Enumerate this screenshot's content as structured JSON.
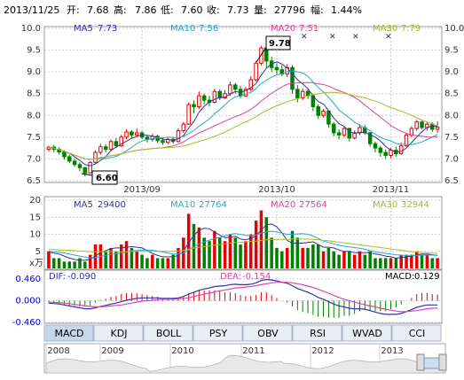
{
  "header": {
    "date": "2013/11/25",
    "open_label": "开:",
    "open": "7.68",
    "high_label": "高:",
    "high": "7.86",
    "low_label": "低:",
    "low": "7.60",
    "close_label": "收:",
    "close": "7.73",
    "volume_label": "量:",
    "volume": "27796",
    "change_label": "幅:",
    "change": "1.44%"
  },
  "colors": {
    "up": "#e60000",
    "down": "#008000",
    "ma5": "#333399",
    "ma10": "#22aacc",
    "ma20": "#dd4499",
    "ma30": "#aabb22",
    "dif": "#3333aa",
    "dea": "#dd44aa",
    "grid": "#cfcfcf",
    "tab_bg": "#e8eef6",
    "tab_active": "#c8d6ea"
  },
  "chart_data": {
    "type": "candlestick",
    "price_axis": {
      "ticks": [
        "10.0",
        "9.5",
        "9.0",
        "8.5",
        "8.0",
        "7.5",
        "7.0",
        "6.5"
      ],
      "ylim": [
        6.5,
        10.0
      ]
    },
    "volume_axis": {
      "ticks": [
        "20",
        "15",
        "10",
        "5"
      ],
      "unit": "x万",
      "ylim": [
        0,
        20
      ]
    },
    "macd_axis": {
      "ticks": [
        "0.460",
        "0.000",
        "-0.460"
      ],
      "ylim": [
        -0.46,
        0.46
      ]
    },
    "x_labels": [
      "2013/09",
      "2013/10",
      "2013/11"
    ],
    "ma_legend": [
      {
        "name": "MA5",
        "value": "7.73"
      },
      {
        "name": "MA10",
        "value": "7.56"
      },
      {
        "name": "MA20",
        "value": "7.51"
      },
      {
        "name": "MA30",
        "value": "7.79"
      }
    ],
    "vol_legend": [
      {
        "name": "MA5",
        "value": "29400"
      },
      {
        "name": "MA10",
        "value": "27764"
      },
      {
        "name": "MA20",
        "value": "27564"
      },
      {
        "name": "MA30",
        "value": "32944"
      }
    ],
    "macd_legend": {
      "dif_label": "DIF:",
      "dif": "-0.090",
      "dea_label": "DEA:",
      "dea": "-0.154",
      "macd_label": "MACD:",
      "macd": "0.129"
    },
    "high_callout": "9.78",
    "low_callout": "6.60",
    "candles": [
      [
        7.22,
        7.27,
        7.17,
        7.3
      ],
      [
        7.27,
        7.22,
        7.15,
        7.32
      ],
      [
        7.22,
        7.16,
        7.1,
        7.26
      ],
      [
        7.16,
        7.05,
        6.98,
        7.2
      ],
      [
        7.05,
        6.95,
        6.9,
        7.1
      ],
      [
        6.95,
        6.87,
        6.82,
        7.0
      ],
      [
        6.87,
        6.8,
        6.72,
        6.92
      ],
      [
        6.8,
        6.68,
        6.6,
        6.82
      ],
      [
        6.68,
        6.92,
        6.66,
        6.95
      ],
      [
        6.92,
        7.15,
        6.9,
        7.2
      ],
      [
        7.15,
        7.28,
        7.1,
        7.35
      ],
      [
        7.28,
        7.22,
        7.15,
        7.34
      ],
      [
        7.22,
        7.4,
        7.18,
        7.45
      ],
      [
        7.4,
        7.3,
        7.25,
        7.48
      ],
      [
        7.3,
        7.5,
        7.28,
        7.55
      ],
      [
        7.5,
        7.62,
        7.45,
        7.68
      ],
      [
        7.62,
        7.55,
        7.48,
        7.66
      ],
      [
        7.55,
        7.6,
        7.52,
        7.7
      ],
      [
        7.6,
        7.5,
        7.45,
        7.64
      ],
      [
        7.5,
        7.45,
        7.38,
        7.55
      ],
      [
        7.45,
        7.52,
        7.4,
        7.58
      ],
      [
        7.52,
        7.42,
        7.36,
        7.56
      ],
      [
        7.42,
        7.38,
        7.32,
        7.48
      ],
      [
        7.38,
        7.45,
        7.34,
        7.5
      ],
      [
        7.45,
        7.4,
        7.35,
        7.5
      ],
      [
        7.4,
        7.65,
        7.38,
        7.7
      ],
      [
        7.65,
        7.8,
        7.6,
        7.85
      ],
      [
        7.8,
        8.25,
        7.78,
        8.3
      ],
      [
        8.25,
        8.2,
        8.05,
        8.35
      ],
      [
        8.2,
        8.45,
        8.15,
        8.55
      ],
      [
        8.45,
        8.35,
        8.25,
        8.5
      ],
      [
        8.35,
        8.3,
        8.2,
        8.45
      ],
      [
        8.3,
        8.55,
        8.28,
        8.62
      ],
      [
        8.55,
        8.4,
        8.35,
        8.6
      ],
      [
        8.4,
        8.5,
        8.38,
        8.58
      ],
      [
        8.5,
        8.7,
        8.45,
        8.78
      ],
      [
        8.7,
        8.6,
        8.5,
        8.75
      ],
      [
        8.6,
        8.45,
        8.4,
        8.68
      ],
      [
        8.45,
        8.6,
        8.42,
        8.65
      ],
      [
        8.6,
        8.82,
        8.55,
        8.9
      ],
      [
        8.82,
        9.2,
        8.78,
        9.25
      ],
      [
        9.2,
        9.55,
        9.15,
        9.6
      ],
      [
        9.55,
        9.25,
        9.1,
        9.78
      ],
      [
        9.25,
        9.1,
        9.0,
        9.35
      ],
      [
        9.1,
        9.05,
        8.95,
        9.2
      ],
      [
        9.05,
        8.95,
        8.9,
        9.15
      ],
      [
        8.95,
        9.1,
        8.88,
        9.18
      ],
      [
        9.1,
        8.6,
        8.5,
        9.15
      ],
      [
        8.6,
        8.4,
        8.3,
        8.7
      ],
      [
        8.4,
        8.55,
        8.35,
        8.62
      ],
      [
        8.55,
        8.45,
        8.38,
        8.6
      ],
      [
        8.45,
        8.2,
        8.1,
        8.5
      ],
      [
        8.2,
        8.0,
        7.92,
        8.25
      ],
      [
        8.0,
        8.1,
        7.95,
        8.15
      ],
      [
        8.1,
        7.8,
        7.72,
        8.12
      ],
      [
        7.8,
        7.6,
        7.52,
        7.85
      ],
      [
        7.6,
        7.55,
        7.45,
        7.68
      ],
      [
        7.55,
        7.7,
        7.5,
        7.75
      ],
      [
        7.7,
        7.48,
        7.4,
        7.72
      ],
      [
        7.48,
        7.6,
        7.45,
        7.65
      ],
      [
        7.6,
        7.72,
        7.55,
        7.8
      ],
      [
        7.72,
        7.6,
        7.55,
        7.78
      ],
      [
        7.6,
        7.35,
        7.28,
        7.62
      ],
      [
        7.35,
        7.25,
        7.15,
        7.4
      ],
      [
        7.25,
        7.15,
        7.05,
        7.3
      ],
      [
        7.15,
        7.08,
        7.0,
        7.22
      ],
      [
        7.08,
        7.2,
        7.02,
        7.25
      ],
      [
        7.2,
        7.12,
        7.05,
        7.28
      ],
      [
        7.12,
        7.3,
        7.1,
        7.38
      ],
      [
        7.3,
        7.55,
        7.28,
        7.6
      ],
      [
        7.55,
        7.7,
        7.5,
        7.75
      ],
      [
        7.7,
        7.85,
        7.65,
        7.9
      ],
      [
        7.85,
        7.72,
        7.68,
        7.88
      ],
      [
        7.72,
        7.8,
        7.65,
        7.85
      ],
      [
        7.8,
        7.68,
        7.62,
        7.84
      ],
      [
        7.68,
        7.73,
        7.6,
        7.86
      ]
    ],
    "volumes": [
      5,
      3,
      3,
      2,
      2,
      2,
      3,
      2,
      4,
      7,
      7,
      5,
      6,
      5,
      7,
      8,
      6,
      5,
      4,
      3,
      4,
      3,
      3,
      3,
      4,
      6,
      9,
      16,
      13,
      12,
      9,
      8,
      11,
      9,
      8,
      10,
      9,
      7,
      8,
      10,
      14,
      17,
      15,
      9,
      6,
      5,
      6,
      11,
      9,
      6,
      6,
      7,
      7,
      5,
      6,
      5,
      4,
      5,
      5,
      4,
      5,
      4,
      5,
      3,
      3,
      3,
      3,
      3,
      4,
      4,
      4,
      5,
      4,
      4,
      3,
      3
    ],
    "vol_ma5": [
      4.8,
      4.5,
      4.2,
      3.6,
      3.0,
      2.6,
      2.4,
      2.4,
      2.6,
      3.6,
      4.6,
      5.2,
      5.8,
      6.0,
      6.0,
      6.2,
      6.4,
      6.2,
      6.0,
      5.2,
      4.4,
      3.8,
      3.4,
      3.4,
      3.4,
      3.8,
      5.0,
      7.6,
      9.6,
      11.2,
      11.8,
      11.6,
      10.6,
      9.8,
      9.0,
      9.2,
      9.4,
      8.6,
      8.4,
      8.8,
      9.6,
      11.2,
      12.8,
      13.0,
      12.2,
      10.4,
      8.2,
      7.4,
      7.4,
      7.4,
      7.6,
      7.8,
      7.0,
      6.2,
      6.2,
      6.0,
      5.4,
      5.0,
      5.0,
      4.6,
      4.6,
      4.6,
      4.6,
      4.2,
      4.0,
      3.6,
      3.4,
      3.0,
      3.2,
      3.4,
      3.6,
      4.0,
      4.2,
      4.2,
      4.0,
      3.8
    ],
    "vol_ma10": [
      5.0,
      4.9,
      4.7,
      4.5,
      4.2,
      3.9,
      3.6,
      3.3,
      3.1,
      3.2,
      3.5,
      3.8,
      4.1,
      4.3,
      4.5,
      4.8,
      5.1,
      5.3,
      5.4,
      5.4,
      5.3,
      5.1,
      4.8,
      4.5,
      4.2,
      4.2,
      4.5,
      5.4,
      6.3,
      7.2,
      7.8,
      8.3,
      8.7,
      9.1,
      9.5,
      10.0,
      10.2,
      10.0,
      9.7,
      9.6,
      9.8,
      10.3,
      10.7,
      10.9,
      10.7,
      10.3,
      10.0,
      10.0,
      10.1,
      10.2,
      10.0,
      9.5,
      8.8,
      8.0,
      7.6,
      7.2,
      6.8,
      6.5,
      6.3,
      6.1,
      5.9,
      5.6,
      5.2,
      4.8,
      4.6,
      4.4,
      4.2,
      4.0,
      3.9,
      3.8,
      3.8,
      3.8,
      3.9,
      3.9,
      3.9,
      3.8
    ],
    "vol_ma30": [
      5.5,
      5.5,
      5.4,
      5.4,
      5.3,
      5.2,
      5.1,
      5.0,
      4.9,
      4.9,
      4.9,
      4.9,
      4.9,
      4.9,
      4.9,
      4.9,
      5.0,
      5.0,
      5.0,
      5.0,
      5.0,
      5.0,
      5.0,
      5.0,
      5.0,
      5.1,
      5.3,
      5.6,
      5.9,
      6.2,
      6.4,
      6.6,
      6.8,
      7.0,
      7.2,
      7.4,
      7.6,
      7.7,
      7.8,
      7.9,
      8.0,
      8.2,
      8.4,
      8.5,
      8.5,
      8.5,
      8.5,
      8.6,
      8.6,
      8.6,
      8.6,
      8.5,
      8.4,
      8.2,
      8.1,
      7.9,
      7.7,
      7.5,
      7.3,
      7.1,
      6.9,
      6.7,
      6.5,
      6.3,
      6.1,
      5.9,
      5.7,
      5.5,
      5.3,
      5.1,
      4.9,
      4.8,
      4.7,
      4.6,
      4.5,
      4.4
    ],
    "dif": [
      -0.05,
      -0.06,
      -0.07,
      -0.09,
      -0.11,
      -0.13,
      -0.15,
      -0.17,
      -0.17,
      -0.15,
      -0.12,
      -0.1,
      -0.07,
      -0.05,
      -0.02,
      0.01,
      0.03,
      0.05,
      0.06,
      0.06,
      0.06,
      0.06,
      0.05,
      0.05,
      0.05,
      0.06,
      0.09,
      0.14,
      0.18,
      0.22,
      0.25,
      0.27,
      0.3,
      0.31,
      0.32,
      0.34,
      0.35,
      0.34,
      0.34,
      0.35,
      0.38,
      0.43,
      0.45,
      0.44,
      0.42,
      0.39,
      0.37,
      0.32,
      0.26,
      0.22,
      0.18,
      0.13,
      0.07,
      0.03,
      -0.02,
      -0.07,
      -0.11,
      -0.13,
      -0.16,
      -0.17,
      -0.17,
      -0.18,
      -0.21,
      -0.24,
      -0.27,
      -0.29,
      -0.29,
      -0.29,
      -0.27,
      -0.23,
      -0.19,
      -0.14,
      -0.11,
      -0.09,
      -0.09,
      -0.09
    ],
    "dea": [
      -0.03,
      -0.04,
      -0.04,
      -0.05,
      -0.06,
      -0.08,
      -0.09,
      -0.11,
      -0.12,
      -0.13,
      -0.13,
      -0.12,
      -0.11,
      -0.1,
      -0.09,
      -0.07,
      -0.05,
      -0.03,
      -0.01,
      0.0,
      0.01,
      0.02,
      0.03,
      0.03,
      0.03,
      0.04,
      0.05,
      0.06,
      0.09,
      0.11,
      0.14,
      0.16,
      0.19,
      0.21,
      0.23,
      0.25,
      0.27,
      0.28,
      0.29,
      0.3,
      0.32,
      0.34,
      0.36,
      0.38,
      0.39,
      0.39,
      0.39,
      0.38,
      0.36,
      0.34,
      0.31,
      0.28,
      0.24,
      0.2,
      0.16,
      0.11,
      0.07,
      0.03,
      0.0,
      -0.03,
      -0.06,
      -0.08,
      -0.11,
      -0.13,
      -0.16,
      -0.18,
      -0.2,
      -0.22,
      -0.23,
      -0.23,
      -0.22,
      -0.21,
      -0.19,
      -0.17,
      -0.16,
      -0.154
    ]
  },
  "tabs": [
    "MACD",
    "KDJ",
    "BOLL",
    "PSY",
    "OBV",
    "RSI",
    "WVAD",
    "CCI"
  ],
  "active_tab": "MACD",
  "timeline": {
    "years": [
      "2008",
      "2009",
      "2010",
      "2011",
      "2012",
      "2013"
    ]
  }
}
